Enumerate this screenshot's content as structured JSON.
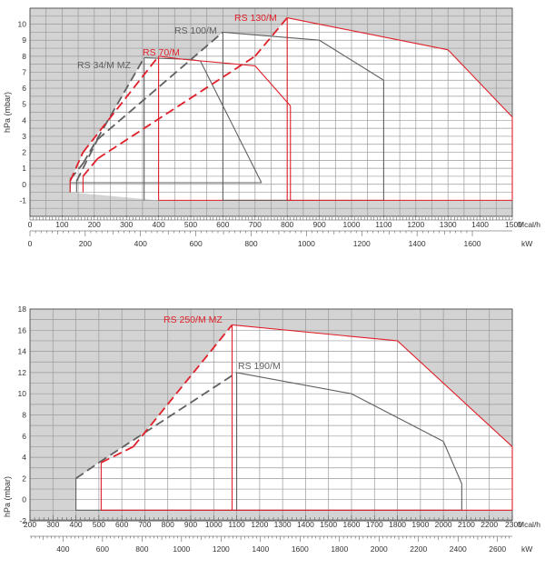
{
  "colors": {
    "background": "#d3d3d3",
    "grid": "#9a9a9a",
    "red": "#e0202a",
    "gray": "#606060",
    "axis": "#444444"
  },
  "chart_data": [
    {
      "type": "line",
      "title": "",
      "ylabel": "hPa (mbar)",
      "x_unit_primary": "Mcal/h",
      "x_unit_secondary": "kW",
      "xlim": [
        0,
        1500
      ],
      "ylim": [
        -2,
        11
      ],
      "x_ticks": [
        0,
        100,
        200,
        300,
        400,
        500,
        600,
        700,
        800,
        900,
        1000,
        1100,
        1200,
        1300,
        1400,
        1500
      ],
      "y_ticks": [
        -1,
        0,
        1,
        2,
        3,
        4,
        5,
        6,
        7,
        8,
        9,
        10
      ],
      "kw_ticks": [
        0,
        200,
        400,
        600,
        800,
        1000,
        1200,
        1400,
        1600
      ],
      "series": [
        {
          "name": "RS 34/M MZ",
          "color": "gray",
          "boundary": [
            [
              125,
              -0.5
            ],
            [
              125,
              0.3
            ],
            [
              165,
              1.3
            ],
            [
              355,
              7.9
            ],
            [
              500,
              7.8
            ],
            [
              530,
              7.7
            ],
            [
              720,
              0.1
            ],
            [
              125,
              0.1
            ]
          ],
          "dashed_segment": [
            [
              125,
              0.3
            ],
            [
              165,
              1.3
            ],
            [
              355,
              7.9
            ]
          ],
          "vertical_at": 355,
          "bottom_y": -1
        },
        {
          "name": "RS 70/M",
          "color": "red",
          "boundary": [
            [
              125,
              -0.5
            ],
            [
              125,
              0.2
            ],
            [
              165,
              2.0
            ],
            [
              400,
              8.0
            ],
            [
              480,
              7.8
            ],
            [
              700,
              7.4
            ],
            [
              810,
              4.9
            ],
            [
              810,
              -1
            ],
            [
              400,
              -1
            ]
          ],
          "dashed_segment": [
            [
              125,
              0.2
            ],
            [
              165,
              2.0
            ],
            [
              400,
              8.0
            ]
          ],
          "vertical_at": 400,
          "bottom_y": -1
        },
        {
          "name": "RS 100/M",
          "color": "gray",
          "boundary": [
            [
              145,
              -0.5
            ],
            [
              145,
              0.2
            ],
            [
              210,
              2.8
            ],
            [
              600,
              9.5
            ],
            [
              900,
              9.0
            ],
            [
              1100,
              6.5
            ],
            [
              1100,
              -1
            ],
            [
              600,
              -1
            ]
          ],
          "dashed_segment": [
            [
              145,
              0.2
            ],
            [
              210,
              2.8
            ],
            [
              600,
              9.5
            ]
          ],
          "vertical_at": 600,
          "bottom_y": -1
        },
        {
          "name": "RS 130/M",
          "color": "red",
          "boundary": [
            [
              165,
              -0.5
            ],
            [
              165,
              0.5
            ],
            [
              210,
              1.6
            ],
            [
              700,
              8.0
            ],
            [
              800,
              10.4
            ],
            [
              1300,
              8.4
            ],
            [
              1500,
              4.2
            ],
            [
              1500,
              -1
            ],
            [
              800,
              -1
            ]
          ],
          "dashed_segment": [
            [
              165,
              0.5
            ],
            [
              210,
              1.6
            ],
            [
              700,
              8.0
            ],
            [
              800,
              10.4
            ]
          ],
          "vertical_at": 800,
          "bottom_y": -1
        }
      ]
    },
    {
      "type": "line",
      "title": "",
      "ylabel": "hPa (mbar)",
      "x_unit_primary": "Mcal/h",
      "x_unit_secondary": "kW",
      "xlim": [
        200,
        2300
      ],
      "ylim": [
        -2,
        18
      ],
      "x_ticks": [
        200,
        300,
        400,
        500,
        600,
        700,
        800,
        900,
        1000,
        1100,
        1200,
        1300,
        1400,
        1500,
        1600,
        1700,
        1800,
        1900,
        2000,
        2100,
        2200,
        2300
      ],
      "y_ticks": [
        -2,
        0,
        2,
        4,
        6,
        8,
        10,
        12,
        14,
        16,
        18
      ],
      "kw_ticks": [
        400,
        600,
        800,
        1000,
        1200,
        1400,
        1600,
        1800,
        2000,
        2200,
        2400,
        2600
      ],
      "series": [
        {
          "name": "RS 190/M",
          "color": "gray",
          "boundary": [
            [
              400,
              -1
            ],
            [
              400,
              2.0
            ],
            [
              500,
              3.5
            ],
            [
              1100,
              12.0
            ],
            [
              1600,
              10.0
            ],
            [
              2000,
              5.5
            ],
            [
              2080,
              1.5
            ],
            [
              2080,
              -1
            ],
            [
              400,
              -1
            ]
          ],
          "dashed_segment": [
            [
              400,
              2.0
            ],
            [
              500,
              3.5
            ],
            [
              1100,
              12.0
            ]
          ],
          "vertical_at": 1100,
          "bottom_y": -1
        },
        {
          "name": "RS 250/M MZ",
          "color": "red",
          "boundary": [
            [
              510,
              -1
            ],
            [
              510,
              3.5
            ],
            [
              650,
              5.0
            ],
            [
              1080,
              16.5
            ],
            [
              1800,
              15.0
            ],
            [
              2300,
              5.0
            ],
            [
              2300,
              -1
            ],
            [
              510,
              -1
            ]
          ],
          "dashed_segment": [
            [
              510,
              3.5
            ],
            [
              650,
              5.0
            ],
            [
              1080,
              16.5
            ]
          ],
          "vertical_at": 1080,
          "bottom_y": -1
        }
      ]
    }
  ]
}
